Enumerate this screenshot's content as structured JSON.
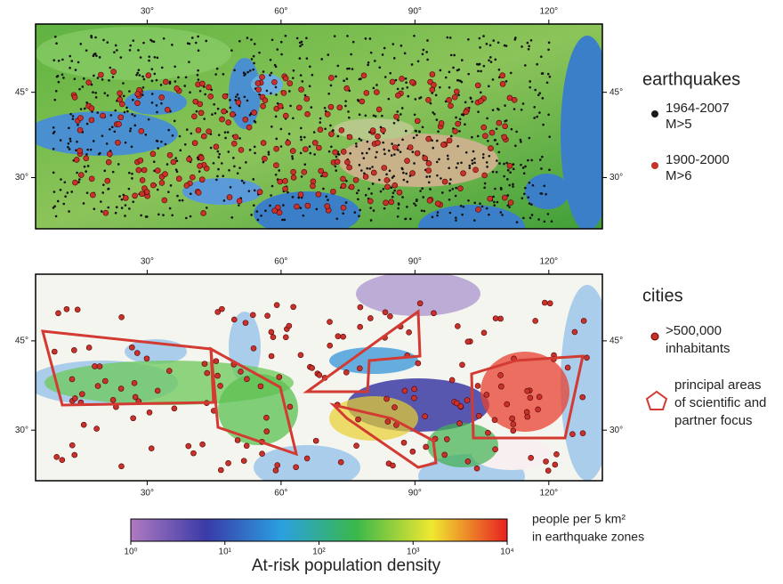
{
  "top_map": {
    "xlim": [
      5,
      132
    ],
    "ylim": [
      21,
      57
    ],
    "xticks": [
      {
        "value": 30,
        "label": "30°"
      },
      {
        "value": 60,
        "label": "60°"
      },
      {
        "value": 90,
        "label": "90°"
      },
      {
        "value": 120,
        "label": "120°"
      }
    ],
    "yticks": [
      {
        "value": 45,
        "label": "45°"
      },
      {
        "value": 30,
        "label": "30°"
      }
    ]
  },
  "bottom_map": {
    "xlim": [
      5,
      132
    ],
    "ylim": [
      21.5,
      56.2
    ],
    "xticks": [
      {
        "value": 30,
        "label": "30°"
      },
      {
        "value": 60,
        "label": "60°"
      },
      {
        "value": 90,
        "label": "90°"
      },
      {
        "value": 120,
        "label": "120°"
      }
    ],
    "yticks": [
      {
        "value": 45,
        "label": "45°"
      },
      {
        "value": 30,
        "label": "30°"
      }
    ]
  },
  "legend": {
    "earthquakes": {
      "heading": "earthquakes",
      "items": [
        {
          "lines": [
            "1964-2007",
            "M>5"
          ],
          "color": "#1a1a1a"
        },
        {
          "lines": [
            "1900-2000",
            "M>6"
          ],
          "color": "#c8322c"
        }
      ]
    },
    "cities": {
      "heading": "cities",
      "items": [
        {
          "lines": [
            ">500,000",
            "inhabitants"
          ],
          "color": "#c8322c"
        },
        {
          "lines": [
            "principal areas",
            "of scientific and",
            "partner focus"
          ],
          "color": "#d23a32"
        }
      ]
    }
  },
  "colorbar": {
    "title": "At-risk population density",
    "unit_lines": [
      "people per 5 km²",
      "in earthquake zones"
    ],
    "log": true,
    "lim": [
      1,
      10000
    ],
    "ticks": [
      {
        "value": 1,
        "label": "10⁰"
      },
      {
        "value": 10,
        "label": "10¹"
      },
      {
        "value": 100,
        "label": "10²"
      },
      {
        "value": 1000,
        "label": "10³"
      },
      {
        "value": 10000,
        "label": "10⁴"
      }
    ],
    "colors": [
      "#b07ac0",
      "#3a3aa8",
      "#2aa0e0",
      "#3ab84a",
      "#f0e830",
      "#e82020"
    ]
  }
}
